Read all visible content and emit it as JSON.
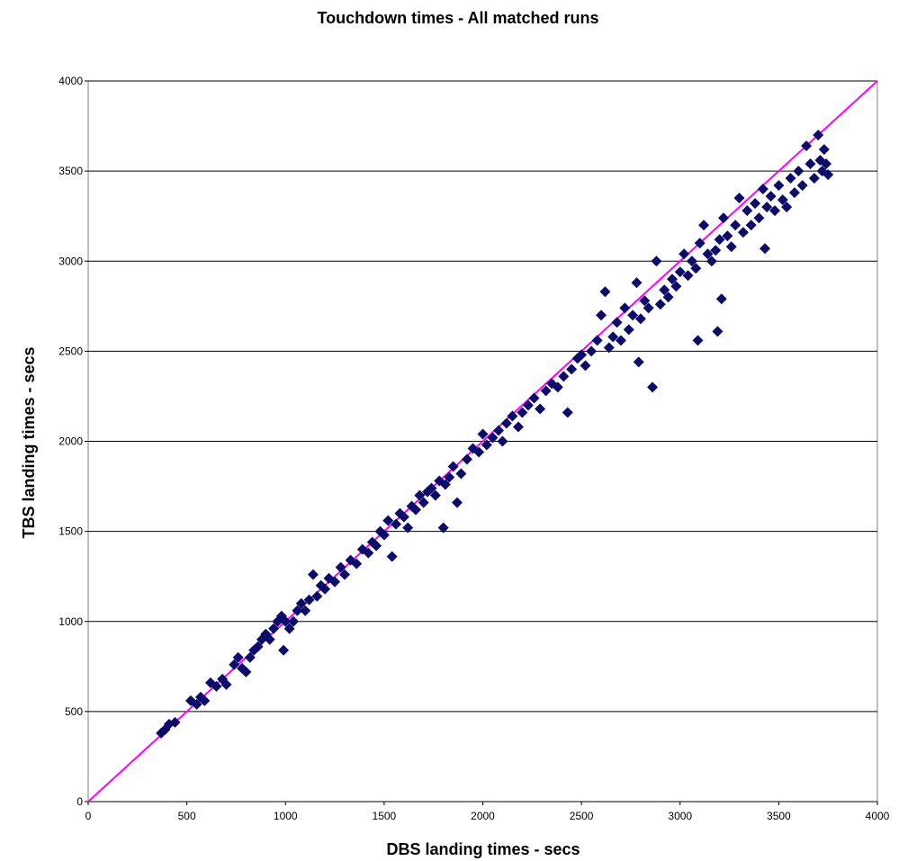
{
  "chart_data": {
    "type": "scatter",
    "title": "Touchdown times - All matched runs",
    "xlabel": "DBS landing times - secs",
    "ylabel": "TBS landing times - secs",
    "xlim": [
      0,
      4000
    ],
    "ylim": [
      0,
      4000
    ],
    "x_ticks": [
      "0",
      "500",
      "1000",
      "1500",
      "2000",
      "2500",
      "3000",
      "3500",
      "4000"
    ],
    "y_ticks": [
      "0",
      "500",
      "1000",
      "1500",
      "2000",
      "2500",
      "3000",
      "3500",
      "4000"
    ],
    "grid": "horizontal",
    "legend": "none",
    "marker": "diamond",
    "marker_color": "#0b0b6e",
    "reference_line": {
      "x": [
        0,
        4000
      ],
      "y": [
        0,
        4000
      ],
      "color": "#ff00ff"
    },
    "series": [
      {
        "points": [
          [
            370,
            380
          ],
          [
            390,
            400
          ],
          [
            410,
            430
          ],
          [
            440,
            440
          ],
          [
            520,
            560
          ],
          [
            550,
            540
          ],
          [
            570,
            580
          ],
          [
            590,
            560
          ],
          [
            620,
            660
          ],
          [
            650,
            640
          ],
          [
            680,
            680
          ],
          [
            700,
            650
          ],
          [
            740,
            760
          ],
          [
            760,
            800
          ],
          [
            780,
            740
          ],
          [
            800,
            720
          ],
          [
            820,
            800
          ],
          [
            840,
            840
          ],
          [
            860,
            860
          ],
          [
            880,
            900
          ],
          [
            900,
            930
          ],
          [
            920,
            900
          ],
          [
            940,
            960
          ],
          [
            960,
            1000
          ],
          [
            980,
            1030
          ],
          [
            990,
            840
          ],
          [
            1000,
            1000
          ],
          [
            1020,
            960
          ],
          [
            1040,
            1000
          ],
          [
            1060,
            1060
          ],
          [
            1080,
            1100
          ],
          [
            1100,
            1060
          ],
          [
            1120,
            1120
          ],
          [
            1140,
            1260
          ],
          [
            1160,
            1140
          ],
          [
            1180,
            1200
          ],
          [
            1200,
            1180
          ],
          [
            1220,
            1240
          ],
          [
            1250,
            1220
          ],
          [
            1280,
            1300
          ],
          [
            1300,
            1260
          ],
          [
            1330,
            1340
          ],
          [
            1360,
            1320
          ],
          [
            1390,
            1400
          ],
          [
            1420,
            1380
          ],
          [
            1440,
            1440
          ],
          [
            1460,
            1420
          ],
          [
            1480,
            1500
          ],
          [
            1500,
            1480
          ],
          [
            1520,
            1560
          ],
          [
            1540,
            1360
          ],
          [
            1560,
            1540
          ],
          [
            1580,
            1600
          ],
          [
            1600,
            1580
          ],
          [
            1620,
            1520
          ],
          [
            1640,
            1640
          ],
          [
            1660,
            1620
          ],
          [
            1680,
            1700
          ],
          [
            1700,
            1660
          ],
          [
            1720,
            1720
          ],
          [
            1740,
            1740
          ],
          [
            1760,
            1700
          ],
          [
            1780,
            1780
          ],
          [
            1800,
            1520
          ],
          [
            1810,
            1760
          ],
          [
            1830,
            1800
          ],
          [
            1850,
            1860
          ],
          [
            1870,
            1660
          ],
          [
            1890,
            1820
          ],
          [
            1920,
            1900
          ],
          [
            1950,
            1960
          ],
          [
            1980,
            1940
          ],
          [
            2000,
            2040
          ],
          [
            2020,
            1980
          ],
          [
            2050,
            2020
          ],
          [
            2080,
            2060
          ],
          [
            2100,
            2000
          ],
          [
            2120,
            2100
          ],
          [
            2150,
            2140
          ],
          [
            2180,
            2080
          ],
          [
            2200,
            2160
          ],
          [
            2230,
            2200
          ],
          [
            2260,
            2240
          ],
          [
            2290,
            2180
          ],
          [
            2320,
            2280
          ],
          [
            2350,
            2320
          ],
          [
            2380,
            2300
          ],
          [
            2410,
            2360
          ],
          [
            2430,
            2160
          ],
          [
            2450,
            2400
          ],
          [
            2480,
            2460
          ],
          [
            2500,
            2480
          ],
          [
            2520,
            2420
          ],
          [
            2550,
            2500
          ],
          [
            2580,
            2560
          ],
          [
            2600,
            2700
          ],
          [
            2620,
            2830
          ],
          [
            2640,
            2520
          ],
          [
            2660,
            2580
          ],
          [
            2680,
            2660
          ],
          [
            2700,
            2560
          ],
          [
            2720,
            2740
          ],
          [
            2740,
            2620
          ],
          [
            2760,
            2700
          ],
          [
            2780,
            2880
          ],
          [
            2790,
            2440
          ],
          [
            2800,
            2680
          ],
          [
            2820,
            2780
          ],
          [
            2840,
            2740
          ],
          [
            2860,
            2300
          ],
          [
            2880,
            3000
          ],
          [
            2900,
            2760
          ],
          [
            2920,
            2840
          ],
          [
            2940,
            2800
          ],
          [
            2960,
            2900
          ],
          [
            2980,
            2860
          ],
          [
            3000,
            2940
          ],
          [
            3020,
            3040
          ],
          [
            3040,
            2920
          ],
          [
            3060,
            3000
          ],
          [
            3080,
            2960
          ],
          [
            3090,
            2560
          ],
          [
            3100,
            3100
          ],
          [
            3120,
            3200
          ],
          [
            3140,
            3040
          ],
          [
            3160,
            3000
          ],
          [
            3180,
            3060
          ],
          [
            3190,
            2610
          ],
          [
            3200,
            3120
          ],
          [
            3210,
            2790
          ],
          [
            3220,
            3240
          ],
          [
            3240,
            3140
          ],
          [
            3260,
            3080
          ],
          [
            3280,
            3200
          ],
          [
            3300,
            3350
          ],
          [
            3320,
            3160
          ],
          [
            3340,
            3280
          ],
          [
            3360,
            3200
          ],
          [
            3380,
            3320
          ],
          [
            3400,
            3240
          ],
          [
            3420,
            3400
          ],
          [
            3430,
            3070
          ],
          [
            3440,
            3300
          ],
          [
            3460,
            3360
          ],
          [
            3480,
            3280
          ],
          [
            3500,
            3420
          ],
          [
            3520,
            3340
          ],
          [
            3540,
            3300
          ],
          [
            3560,
            3460
          ],
          [
            3580,
            3380
          ],
          [
            3600,
            3500
          ],
          [
            3620,
            3420
          ],
          [
            3640,
            3640
          ],
          [
            3660,
            3540
          ],
          [
            3680,
            3460
          ],
          [
            3700,
            3700
          ],
          [
            3710,
            3560
          ],
          [
            3720,
            3500
          ],
          [
            3730,
            3620
          ],
          [
            3740,
            3540
          ],
          [
            3750,
            3480
          ]
        ]
      }
    ]
  }
}
